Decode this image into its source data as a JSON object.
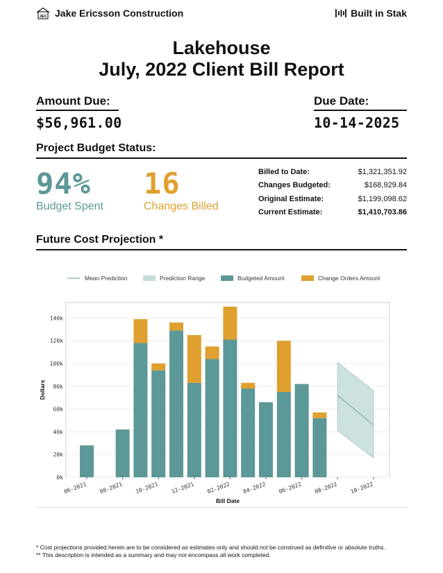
{
  "header": {
    "company": "Jake Ericsson Construction",
    "logo_letters": "JEC",
    "built_in": "Built in Stak"
  },
  "report": {
    "project": "Lakehouse",
    "title": "July, 2022 Client Bill Report"
  },
  "amount_due": {
    "label": "Amount Due:",
    "value": "$56,961.00"
  },
  "due_date": {
    "label": "Due Date:",
    "value": "10-14-2025"
  },
  "budget_status": {
    "heading": "Project Budget Status:",
    "budget_spent": {
      "value": "94%",
      "caption": "Budget Spent",
      "fraction": 0.94
    },
    "changes_billed": {
      "value": "16",
      "caption": "Changes Billed"
    },
    "summary": [
      {
        "label": "Billed to Date:",
        "value": "$1,321,351.92"
      },
      {
        "label": "Changes Budgeted:",
        "value": "$168,929.84"
      },
      {
        "label": "Original Estimate:",
        "value": "$1,199,098.62"
      },
      {
        "label": "Current Estimate:",
        "value": "$1,410,703.86"
      }
    ]
  },
  "projection_heading": "Future Cost Projection *",
  "colors": {
    "teal": "#5b9897",
    "gold": "#e0a02f",
    "range": "#c5dcdc",
    "mean": "#7fb0a8"
  },
  "chart_data": {
    "type": "bar",
    "xlabel": "Bill Date",
    "ylabel": "Dollars",
    "ylim": [
      0,
      150000
    ],
    "y_ticks": [
      0,
      20000,
      40000,
      60000,
      80000,
      100000,
      120000,
      140000
    ],
    "y_tick_labels": [
      "0k",
      "20k",
      "40k",
      "60k",
      "80k",
      "100k",
      "120k",
      "140k"
    ],
    "x_tick_labels": [
      "06-2021",
      "08-2021",
      "10-2021",
      "12-2021",
      "02-2022",
      "04-2022",
      "06-2022",
      "08-2022",
      "10-2022"
    ],
    "x_tick_months": [
      "2021-06",
      "2021-08",
      "2021-10",
      "2021-12",
      "2022-02",
      "2022-04",
      "2022-06",
      "2022-08",
      "2022-10"
    ],
    "legend": [
      "Mean Prediction",
      "Prediction Range",
      "Budgeted Amount",
      "Change Orders Amount"
    ],
    "legend_position": "top",
    "grid": true,
    "bars": [
      {
        "month": "2021-06",
        "budgeted": 28000,
        "change_orders": 0
      },
      {
        "month": "2021-08",
        "budgeted": 42000,
        "change_orders": 0
      },
      {
        "month": "2021-09",
        "budgeted": 118000,
        "change_orders": 21000
      },
      {
        "month": "2021-10",
        "budgeted": 94000,
        "change_orders": 6000
      },
      {
        "month": "2021-11",
        "budgeted": 129000,
        "change_orders": 7000
      },
      {
        "month": "2021-12",
        "budgeted": 83000,
        "change_orders": 42000
      },
      {
        "month": "2022-01",
        "budgeted": 104000,
        "change_orders": 11000
      },
      {
        "month": "2022-02",
        "budgeted": 121000,
        "change_orders": 29000
      },
      {
        "month": "2022-03",
        "budgeted": 78000,
        "change_orders": 5000
      },
      {
        "month": "2022-04",
        "budgeted": 66000,
        "change_orders": 0
      },
      {
        "month": "2022-05",
        "budgeted": 75000,
        "change_orders": 45000
      },
      {
        "month": "2022-06",
        "budgeted": 82000,
        "change_orders": 0
      },
      {
        "month": "2022-07",
        "budgeted": 52000,
        "change_orders": 5000
      }
    ],
    "projection": {
      "months": [
        "2022-08",
        "2022-10"
      ],
      "mean": [
        72000,
        46000
      ],
      "upper": [
        101000,
        76000
      ],
      "lower": [
        41000,
        17000
      ]
    }
  },
  "footnotes": [
    "* Cost projections provided herein are to be considered as estimates only and should not be construed as definitive or absolute truths.",
    "** This description is intended as a summary and may not encompass all work completed."
  ]
}
